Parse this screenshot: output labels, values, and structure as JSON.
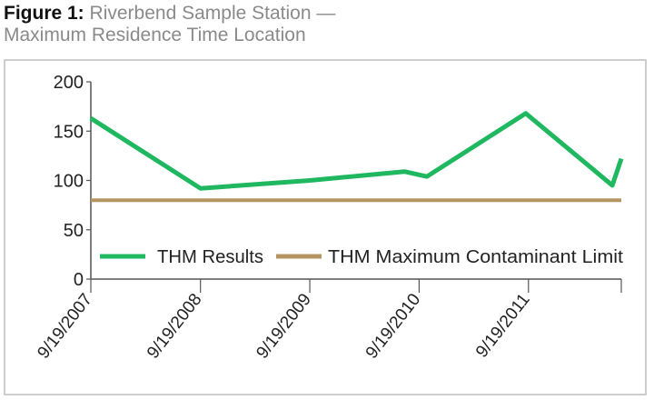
{
  "figure": {
    "label": "Figure 1:",
    "title_line1": "Riverbend Sample Station —",
    "title_line2": "Maximum Residence Time Location"
  },
  "chart_data": {
    "type": "line",
    "title": "Riverbend Sample Station — Maximum Residence Time Location",
    "xlabel": "",
    "ylabel": "",
    "x_type": "date",
    "xlim": [
      "2007-09-19",
      "2012-07-25"
    ],
    "ylim": [
      0,
      200
    ],
    "y_ticks": [
      0,
      50,
      100,
      150,
      200
    ],
    "x_ticks": [
      {
        "date": "2007-09-19",
        "label": "9/19/2007"
      },
      {
        "date": "2008-09-19",
        "label": "9/19/2008"
      },
      {
        "date": "2009-09-19",
        "label": "9/19/2009"
      },
      {
        "date": "2010-09-19",
        "label": "9/19/2010"
      },
      {
        "date": "2011-09-19",
        "label": "9/19/2011"
      }
    ],
    "grid": false,
    "legend_position": "bottom",
    "series": [
      {
        "name": "THM Results",
        "color": "#1fb860",
        "points": [
          {
            "x": "2007-09-19",
            "y": 163
          },
          {
            "x": "2008-09-19",
            "y": 92
          },
          {
            "x": "2009-09-19",
            "y": 100
          },
          {
            "x": "2010-08-01",
            "y": 109
          },
          {
            "x": "2010-10-15",
            "y": 104
          },
          {
            "x": "2011-09-10",
            "y": 168
          },
          {
            "x": "2012-06-25",
            "y": 95
          },
          {
            "x": "2012-07-25",
            "y": 122
          }
        ]
      },
      {
        "name": "THM Maximum Contaminant Limit",
        "color": "#b49561",
        "points": [
          {
            "x": "2007-09-19",
            "y": 80
          },
          {
            "x": "2012-07-25",
            "y": 80
          }
        ]
      }
    ]
  }
}
